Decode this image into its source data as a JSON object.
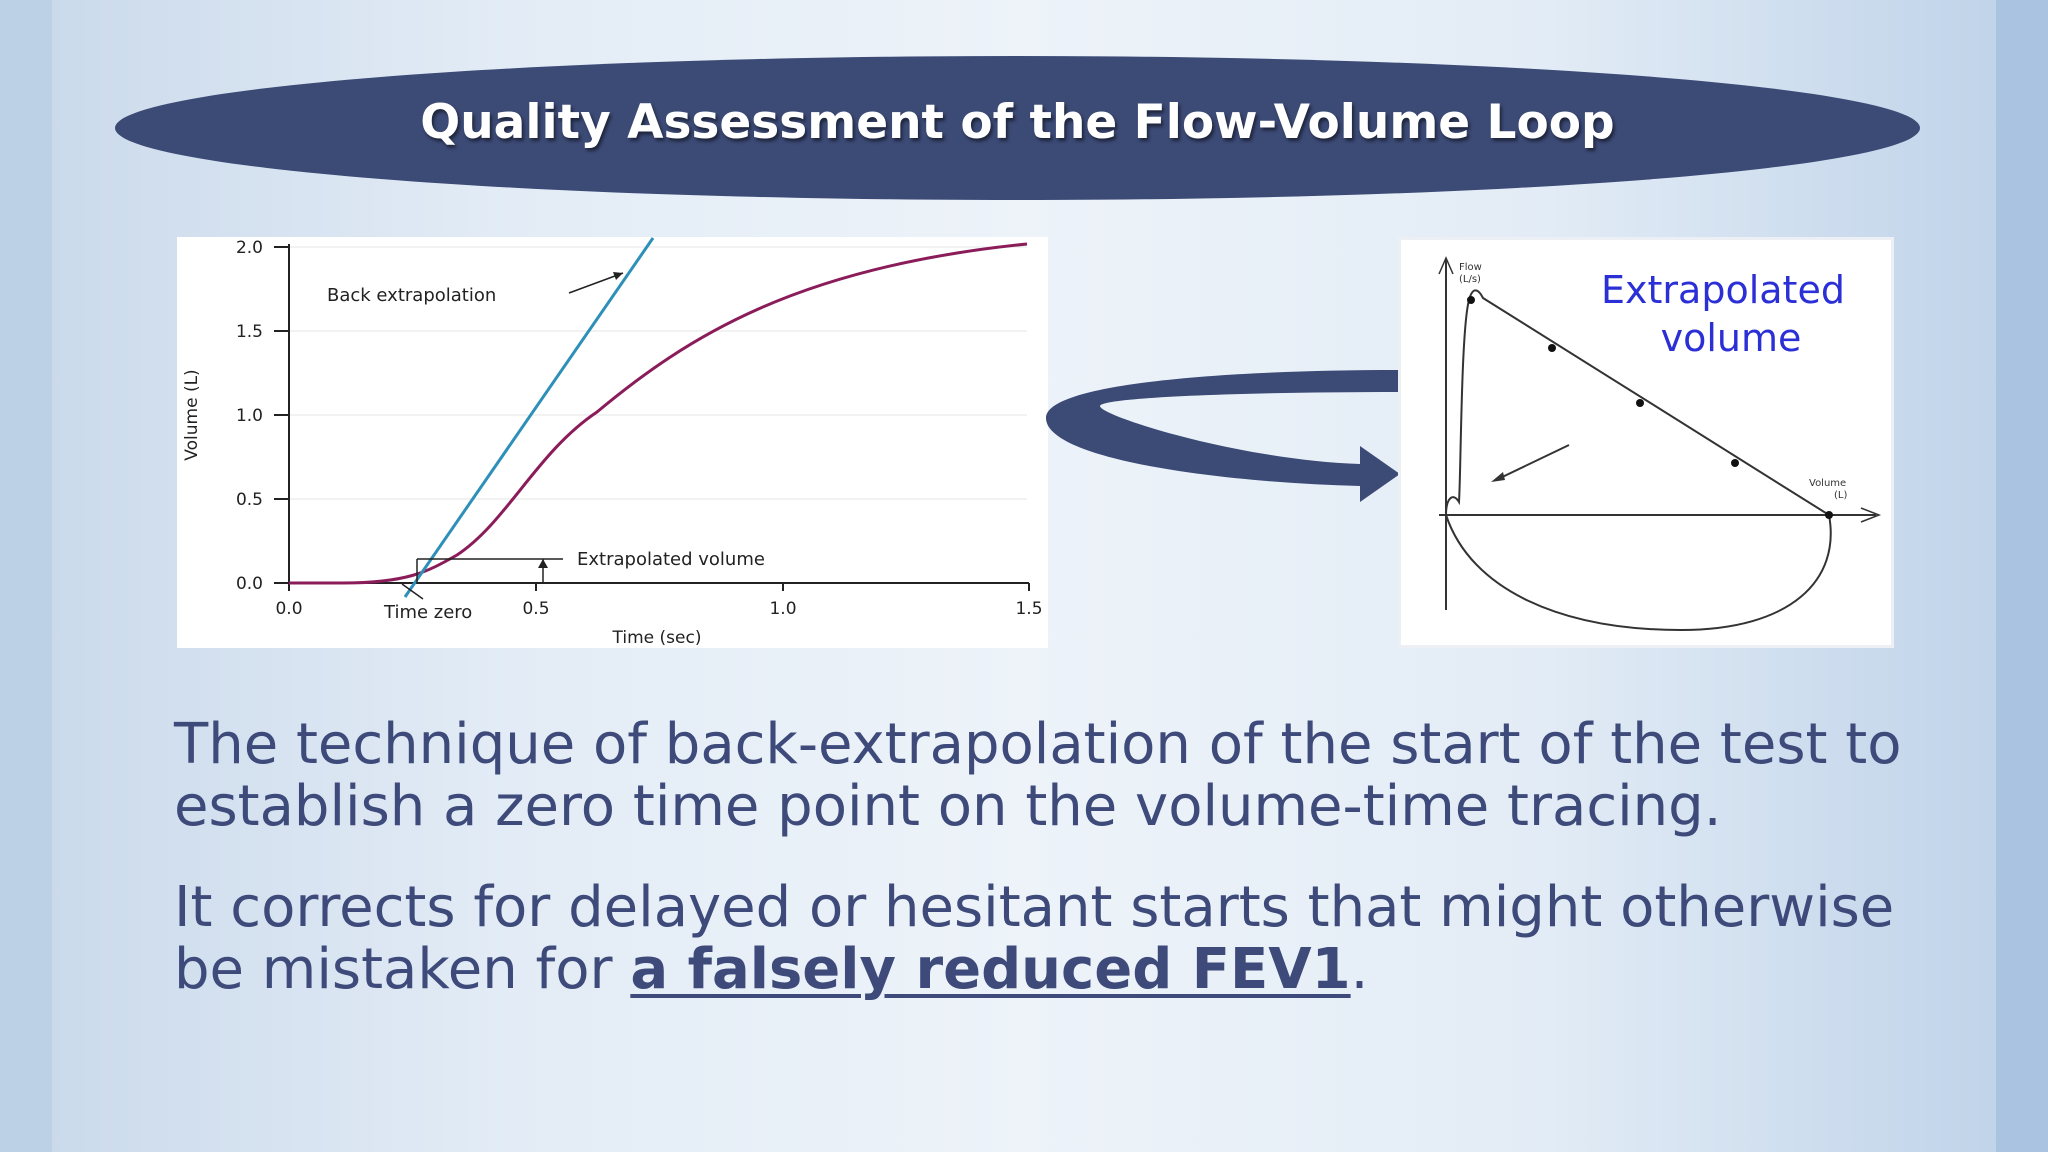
{
  "title": "Quality Assessment of the Flow-Volume Loop",
  "left_chart": {
    "y_label": "Volume (L)",
    "x_label": "Time (sec)",
    "y_ticks": [
      "0.0",
      "0.5",
      "1.0",
      "1.5",
      "2.0"
    ],
    "x_ticks": [
      "0.0",
      "0.5",
      "1.0",
      "1.5"
    ],
    "annotations": {
      "back_extrapolation": "Back extrapolation",
      "extrapolated_volume": "Extrapolated volume",
      "time_zero": "Time zero"
    },
    "colors": {
      "curve": "#8b1c5a",
      "tangent": "#2e8fb8"
    }
  },
  "right_chart": {
    "heading_line1": "Extrapolated",
    "heading_line2": "volume",
    "flow_label_line1": "Flow",
    "flow_label_line2": "(L/s)",
    "volume_label_line1": "Volume",
    "volume_label_line2": "(L)",
    "heading_color": "#2b2fd6"
  },
  "paragraph1": "The technique of back-extrapolation of the start of the test to establish a zero time point on the volume-time tracing.",
  "paragraph2_prefix": "It corrects for delayed or hesitant starts that might otherwise be mistaken for ",
  "paragraph2_emphasis": "a falsely reduced FEV1",
  "paragraph2_suffix": ".",
  "colors": {
    "title_bg": "#3c4a76",
    "body_text": "#3d4a7a",
    "arrow": "#3c4a76"
  }
}
